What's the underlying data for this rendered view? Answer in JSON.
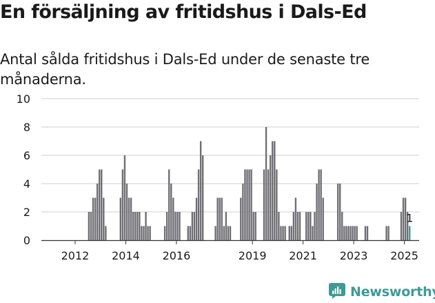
{
  "title": "En försäljning av fritidshus i Dals-Ed",
  "subtitle": "Antal sålda fritidshus i Dals-Ed under de senaste tre månaderna.",
  "brand": {
    "name": "Newsworthy",
    "icon": "newsworthy-logo-icon",
    "color": "#3e9a95"
  },
  "colors": {
    "bar": "#6e6d73",
    "highlight": "#3e9a95",
    "grid": "#cfcfcf",
    "text": "#1a1a1a"
  },
  "chart_data": {
    "type": "bar",
    "title": "En försäljning av fritidshus i Dals-Ed",
    "subtitle": "Antal sålda fritidshus i Dals-Ed under de senaste tre månaderna.",
    "xlabel": "",
    "ylabel": "",
    "x_start": "2011-01",
    "x_unit": "month",
    "ylim": [
      0,
      10
    ],
    "yticks": [
      0,
      2,
      4,
      6,
      8,
      10
    ],
    "xticks": [
      "2012",
      "2014",
      "2016",
      "2019",
      "2021",
      "2023",
      "2025"
    ],
    "grid": "horizontal",
    "values": [
      0,
      0,
      0,
      0,
      0,
      0,
      0,
      0,
      0,
      0,
      0,
      0,
      0,
      0,
      0,
      0,
      0,
      0,
      2,
      2,
      3,
      3,
      4,
      5,
      5,
      3,
      1,
      0,
      0,
      0,
      0,
      0,
      0,
      3,
      5,
      6,
      4,
      3,
      3,
      2,
      2,
      2,
      2,
      1,
      1,
      2,
      1,
      1,
      0,
      0,
      0,
      0,
      0,
      0,
      1,
      2,
      5,
      4,
      3,
      2,
      2,
      2,
      0,
      0,
      0,
      1,
      1,
      2,
      2,
      3,
      5,
      7,
      6,
      0,
      0,
      0,
      0,
      0,
      1,
      3,
      3,
      3,
      1,
      2,
      1,
      1,
      0,
      0,
      0,
      0,
      3,
      4,
      5,
      5,
      5,
      5,
      2,
      2,
      0,
      0,
      0,
      5,
      8,
      5,
      6,
      7,
      7,
      5,
      2,
      1,
      1,
      1,
      0,
      1,
      1,
      2,
      3,
      2,
      2,
      0,
      0,
      2,
      2,
      2,
      1,
      2,
      4,
      5,
      5,
      3,
      0,
      0,
      0,
      0,
      0,
      0,
      4,
      4,
      2,
      1,
      1,
      1,
      1,
      1,
      1,
      1,
      0,
      0,
      0,
      1,
      1,
      0,
      0,
      0,
      0,
      0,
      0,
      0,
      0,
      1,
      1,
      0,
      0,
      0,
      0,
      0,
      2,
      3,
      3,
      2,
      1
    ],
    "highlight_last": true,
    "annotation": {
      "text": "1",
      "target": "last"
    }
  }
}
